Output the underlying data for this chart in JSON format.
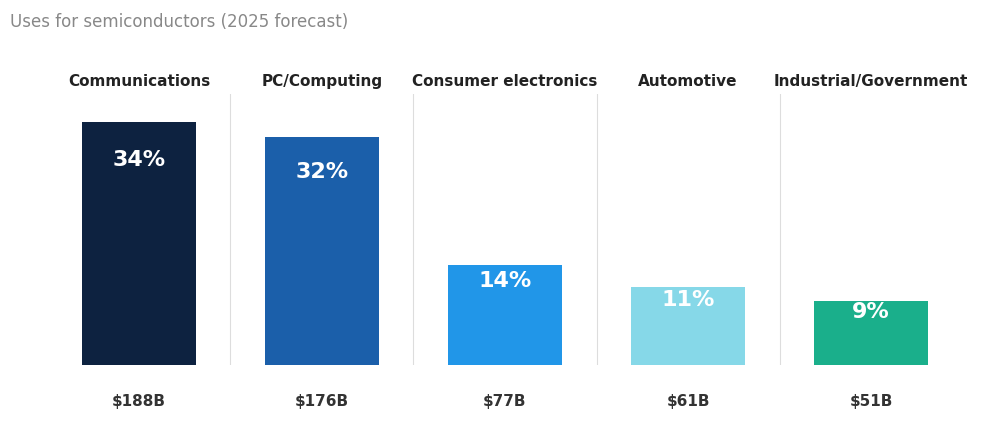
{
  "title": "Uses for semiconductors (2025 forecast)",
  "categories": [
    "Communications",
    "PC/Computing",
    "Consumer electronics",
    "Automotive",
    "Industrial/Government"
  ],
  "values": [
    34,
    32,
    14,
    11,
    9
  ],
  "dollar_labels": [
    "$188B",
    "$176B",
    "$77B",
    "$61B",
    "$51B"
  ],
  "pct_labels": [
    "34%",
    "32%",
    "14%",
    "11%",
    "9%"
  ],
  "bar_colors": [
    "#0d2240",
    "#1b5faa",
    "#2196e8",
    "#86d8e8",
    "#1aaf8b"
  ],
  "background_color": "#ffffff",
  "title_color": "#888888",
  "title_fontsize": 12,
  "category_fontsize": 11,
  "pct_fontsize": 16,
  "dollar_fontsize": 11,
  "bar_width": 0.62,
  "ylim": [
    0,
    38
  ],
  "divider_color": "#dddddd"
}
